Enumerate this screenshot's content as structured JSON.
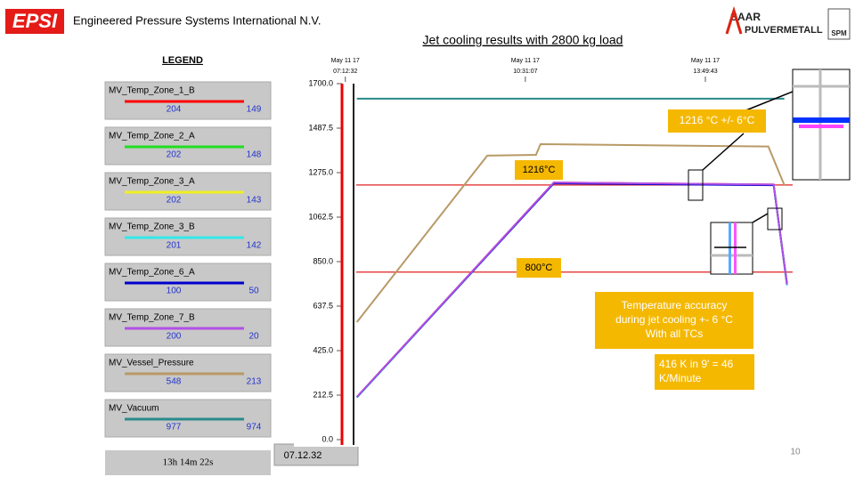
{
  "header": {
    "logo": "EPSI",
    "company": "Engineered Pressure Systems International N.V.",
    "title": "Jet cooling results with 2800 kg load",
    "partner_logo": [
      "SAAR",
      "PULVERMETALL"
    ],
    "partner_badge": "SPM",
    "page_number": "10"
  },
  "legend_title": "LEGEND",
  "status": {
    "elapsed": "13h 14m 22s",
    "time": "07.12.32"
  },
  "chart_data": {
    "type": "line",
    "xlim": [
      "07:00:00",
      "15:26:00"
    ],
    "xticks": [
      "07:12:32",
      "10:31:07",
      "13:49:43"
    ],
    "xtick_dates": [
      "May 11 17",
      "May 11 17",
      "May 11 17"
    ],
    "ylim": [
      0,
      1700
    ],
    "yticks": [
      {
        "value": 0,
        "label": "0.0"
      },
      212.5,
      {
        "value": 425,
        "label": "425.0"
      },
      637.5,
      {
        "value": 850,
        "label": "850.0"
      },
      1062.5,
      {
        "value": 1275,
        "label": "1275.0"
      },
      1487.5,
      {
        "value": 1700,
        "label": "1700.0"
      }
    ],
    "reference_lines": [
      {
        "value": 1216,
        "label": "1216°C",
        "color": "#e02020"
      },
      {
        "value": 800,
        "label": "800°C",
        "color": "#e02020"
      }
    ],
    "annotations": [
      {
        "text": [
          "1216 °C +/- 6°C"
        ]
      },
      {
        "text": [
          "Temperature accuracy",
          "during jet cooling +- 6 °C",
          "With all TCs"
        ]
      },
      {
        "text": [
          "416 K in  9' = 46",
          "K/Minute"
        ]
      }
    ],
    "series": [
      {
        "name": "MV_Temp_Zone_1_B",
        "color": "#ff0000",
        "legend_values": [
          204,
          149
        ],
        "x": [
          "07:25:15",
          "11:02:27",
          "15:05:04",
          "15:19:45"
        ],
        "values": [
          204,
          1228,
          1218,
          740
        ]
      },
      {
        "name": "MV_Temp_Zone_2_A",
        "color": "#22dd22",
        "legend_values": [
          202,
          148
        ],
        "x": [
          "07:25:15",
          "11:02:27",
          "15:05:04",
          "15:19:45"
        ],
        "values": [
          202,
          1226,
          1217,
          742
        ]
      },
      {
        "name": "MV_Temp_Zone_3_A",
        "color": "#f0f020",
        "legend_values": [
          202,
          143
        ],
        "x": [
          "07:25:15",
          "11:02:27",
          "15:05:04",
          "15:19:45"
        ],
        "values": [
          202,
          1226,
          1217,
          738
        ]
      },
      {
        "name": "MV_Temp_Zone_3_B",
        "color": "#33e8e8",
        "legend_values": [
          201,
          142
        ],
        "x": [
          "07:25:15",
          "11:02:27",
          "15:05:04",
          "15:19:45"
        ],
        "values": [
          201,
          1225,
          1216,
          736
        ]
      },
      {
        "name": "MV_Temp_Zone_6_A",
        "color": "#0000cc",
        "legend_values": [
          100,
          50
        ],
        "x": [
          "07:25:15",
          "11:02:27",
          "15:05:04",
          "15:19:45"
        ],
        "values": [
          203,
          1224,
          1215,
          745
        ]
      },
      {
        "name": "MV_Temp_Zone_7_B",
        "color": "#b050e8",
        "legend_values": [
          200,
          20
        ],
        "x": [
          "07:25:15",
          "11:02:27",
          "15:05:04",
          "15:19:45"
        ],
        "values": [
          204,
          1228,
          1218,
          740
        ]
      },
      {
        "name": "MV_Vessel_Pressure",
        "color": "#b89a66",
        "legend_values": [
          548,
          213
        ],
        "x": [
          "07:25:15",
          "09:49:04",
          "10:42:53",
          "10:47:49",
          "14:59:12",
          "15:16:49"
        ],
        "values": [
          561,
          1356,
          1360,
          1411,
          1400,
          1215
        ]
      },
      {
        "name": "MV_Vacuum",
        "color": "#2a8a8a",
        "legend_values": [
          977,
          974
        ],
        "x": [
          "07:25:15",
          "15:16:49"
        ],
        "values": [
          1628,
          1628
        ]
      }
    ]
  }
}
